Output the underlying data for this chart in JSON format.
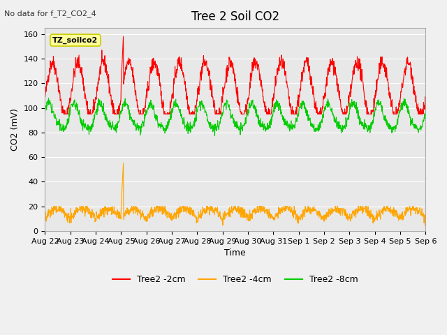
{
  "title": "Tree 2 Soil CO2",
  "note": "No data for f_T2_CO2_4",
  "xlabel": "Time",
  "ylabel": "CO2 (mV)",
  "ylim": [
    0,
    165
  ],
  "yticks": [
    0,
    20,
    40,
    60,
    80,
    100,
    120,
    140,
    160
  ],
  "legend_labels": [
    "Tree2 -2cm",
    "Tree2 -4cm",
    "Tree2 -8cm"
  ],
  "colors": {
    "red": "#FF0000",
    "orange": "#FFA500",
    "green": "#00CC00"
  },
  "x_tick_labels": [
    "Aug 22",
    "Aug 23",
    "Aug 24",
    "Aug 25",
    "Aug 26",
    "Aug 27",
    "Aug 28",
    "Aug 29",
    "Aug 30",
    "Aug 31",
    "Sep 1",
    "Sep 2",
    "Sep 3",
    "Sep 4",
    "Sep 5",
    "Sep 6"
  ],
  "tz_label": "TZ_soilco2",
  "bg_color": "#E8E8E8",
  "n_points": 1400
}
